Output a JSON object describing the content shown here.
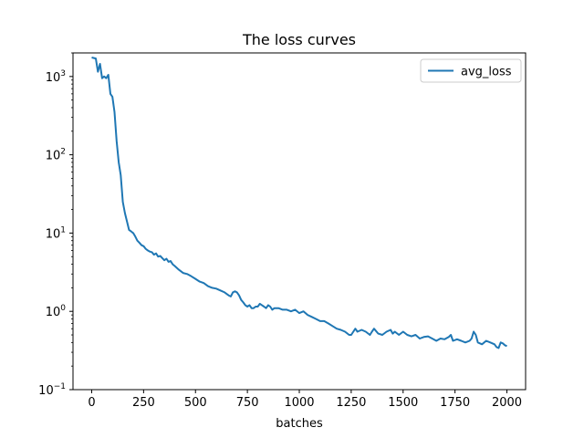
{
  "chart_data": {
    "type": "line",
    "title": "The loss curves",
    "xlabel": "batches",
    "ylabel": "",
    "xscale": "linear",
    "yscale": "log",
    "xlim": [
      -90,
      2090
    ],
    "ylim": [
      0.1,
      2000
    ],
    "grid": false,
    "legend_position": "top-right",
    "x_ticks": [
      0,
      250,
      500,
      750,
      1000,
      1250,
      1500,
      1750,
      2000
    ],
    "x_tick_labels": [
      "0",
      "250",
      "500",
      "750",
      "1000",
      "1250",
      "1500",
      "1750",
      "2000"
    ],
    "y_ticks": [
      0.1,
      1,
      10,
      100,
      1000
    ],
    "y_tick_labels": [
      {
        "base": "10",
        "exp": "−1"
      },
      {
        "base": "10",
        "exp": "0"
      },
      {
        "base": "10",
        "exp": "1"
      },
      {
        "base": "10",
        "exp": "2"
      },
      {
        "base": "10",
        "exp": "3"
      }
    ],
    "series": [
      {
        "name": "avg_loss",
        "color": "#1f77b4",
        "points": [
          [
            0,
            1750
          ],
          [
            20,
            1700
          ],
          [
            30,
            1150
          ],
          [
            40,
            1450
          ],
          [
            50,
            950
          ],
          [
            60,
            1000
          ],
          [
            70,
            950
          ],
          [
            80,
            1050
          ],
          [
            90,
            600
          ],
          [
            100,
            550
          ],
          [
            110,
            350
          ],
          [
            120,
            150
          ],
          [
            130,
            80
          ],
          [
            140,
            55
          ],
          [
            150,
            25
          ],
          [
            160,
            18
          ],
          [
            170,
            14
          ],
          [
            180,
            11
          ],
          [
            190,
            10.5
          ],
          [
            200,
            10
          ],
          [
            210,
            9
          ],
          [
            220,
            8
          ],
          [
            230,
            7.5
          ],
          [
            240,
            7
          ],
          [
            250,
            6.8
          ],
          [
            260,
            6.3
          ],
          [
            270,
            6
          ],
          [
            280,
            5.8
          ],
          [
            290,
            5.7
          ],
          [
            300,
            5.3
          ],
          [
            310,
            5.5
          ],
          [
            320,
            5
          ],
          [
            330,
            5.1
          ],
          [
            340,
            4.8
          ],
          [
            350,
            4.5
          ],
          [
            360,
            4.7
          ],
          [
            370,
            4.3
          ],
          [
            380,
            4.4
          ],
          [
            390,
            4
          ],
          [
            400,
            3.8
          ],
          [
            420,
            3.4
          ],
          [
            440,
            3.1
          ],
          [
            460,
            3
          ],
          [
            480,
            2.8
          ],
          [
            500,
            2.6
          ],
          [
            520,
            2.4
          ],
          [
            540,
            2.3
          ],
          [
            560,
            2.1
          ],
          [
            580,
            2
          ],
          [
            600,
            1.95
          ],
          [
            620,
            1.85
          ],
          [
            640,
            1.75
          ],
          [
            660,
            1.6
          ],
          [
            670,
            1.55
          ],
          [
            680,
            1.75
          ],
          [
            690,
            1.8
          ],
          [
            700,
            1.75
          ],
          [
            710,
            1.6
          ],
          [
            720,
            1.4
          ],
          [
            730,
            1.3
          ],
          [
            740,
            1.2
          ],
          [
            750,
            1.15
          ],
          [
            760,
            1.2
          ],
          [
            770,
            1.1
          ],
          [
            780,
            1.1
          ],
          [
            790,
            1.15
          ],
          [
            800,
            1.15
          ],
          [
            810,
            1.25
          ],
          [
            820,
            1.2
          ],
          [
            830,
            1.15
          ],
          [
            840,
            1.1
          ],
          [
            850,
            1.2
          ],
          [
            860,
            1.15
          ],
          [
            870,
            1.05
          ],
          [
            880,
            1.1
          ],
          [
            900,
            1.1
          ],
          [
            920,
            1.05
          ],
          [
            940,
            1.05
          ],
          [
            960,
            1
          ],
          [
            980,
            1.05
          ],
          [
            1000,
            0.95
          ],
          [
            1020,
            1
          ],
          [
            1040,
            0.9
          ],
          [
            1060,
            0.85
          ],
          [
            1080,
            0.8
          ],
          [
            1100,
            0.75
          ],
          [
            1120,
            0.75
          ],
          [
            1140,
            0.7
          ],
          [
            1160,
            0.65
          ],
          [
            1180,
            0.6
          ],
          [
            1200,
            0.58
          ],
          [
            1220,
            0.55
          ],
          [
            1240,
            0.5
          ],
          [
            1250,
            0.5
          ],
          [
            1260,
            0.55
          ],
          [
            1270,
            0.6
          ],
          [
            1280,
            0.55
          ],
          [
            1300,
            0.58
          ],
          [
            1320,
            0.55
          ],
          [
            1340,
            0.5
          ],
          [
            1350,
            0.55
          ],
          [
            1360,
            0.6
          ],
          [
            1380,
            0.52
          ],
          [
            1400,
            0.5
          ],
          [
            1420,
            0.55
          ],
          [
            1440,
            0.58
          ],
          [
            1450,
            0.52
          ],
          [
            1460,
            0.55
          ],
          [
            1480,
            0.5
          ],
          [
            1500,
            0.55
          ],
          [
            1520,
            0.5
          ],
          [
            1540,
            0.48
          ],
          [
            1560,
            0.5
          ],
          [
            1580,
            0.45
          ],
          [
            1600,
            0.47
          ],
          [
            1620,
            0.48
          ],
          [
            1640,
            0.45
          ],
          [
            1660,
            0.42
          ],
          [
            1680,
            0.45
          ],
          [
            1700,
            0.44
          ],
          [
            1720,
            0.47
          ],
          [
            1730,
            0.5
          ],
          [
            1740,
            0.42
          ],
          [
            1760,
            0.44
          ],
          [
            1780,
            0.42
          ],
          [
            1800,
            0.4
          ],
          [
            1820,
            0.42
          ],
          [
            1830,
            0.45
          ],
          [
            1840,
            0.55
          ],
          [
            1850,
            0.5
          ],
          [
            1860,
            0.4
          ],
          [
            1880,
            0.38
          ],
          [
            1900,
            0.42
          ],
          [
            1920,
            0.4
          ],
          [
            1940,
            0.38
          ],
          [
            1950,
            0.35
          ],
          [
            1960,
            0.34
          ],
          [
            1970,
            0.4
          ],
          [
            1980,
            0.39
          ],
          [
            1990,
            0.37
          ],
          [
            2000,
            0.36
          ]
        ]
      }
    ]
  }
}
